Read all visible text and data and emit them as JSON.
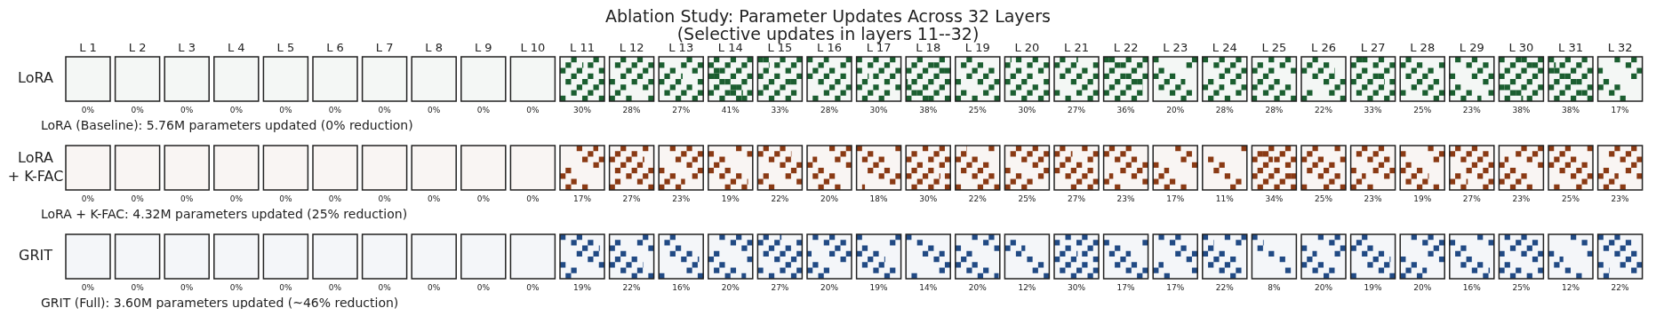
{
  "chart_data": {
    "type": "heatmap",
    "title": "Ablation Study: Parameter Updates Across 32 Layers",
    "subtitle": "(Selective updates in layers 11--32)",
    "categories": [
      "L 1",
      "L 2",
      "L 3",
      "L 4",
      "L 5",
      "L 6",
      "L 7",
      "L 8",
      "L 9",
      "L 10",
      "L 11",
      "L 12",
      "L 13",
      "L 14",
      "L 15",
      "L 16",
      "L 17",
      "L 18",
      "L 19",
      "L 20",
      "L 21",
      "L 22",
      "L 23",
      "L 24",
      "L 25",
      "L 26",
      "L 27",
      "L 28",
      "L 29",
      "L 30",
      "L 31",
      "L 32"
    ],
    "y_categories": [
      "LoRA",
      "LoRA\n+ K-FAC",
      "GRIT"
    ],
    "colors": [
      "#1b5e30",
      "#8a3a14",
      "#214a84"
    ],
    "cells": [
      [
        0,
        0,
        0,
        0,
        0,
        0,
        0,
        0,
        0,
        0,
        30,
        28,
        27,
        41,
        33,
        28,
        30,
        38,
        25,
        30,
        27,
        36,
        20,
        28,
        28,
        22,
        33,
        25,
        23,
        38,
        38,
        17
      ],
      [
        0,
        0,
        0,
        0,
        0,
        0,
        0,
        0,
        0,
        0,
        17,
        27,
        23,
        19,
        22,
        20,
        18,
        30,
        22,
        25,
        27,
        23,
        17,
        11,
        34,
        25,
        23,
        19,
        27,
        23,
        25,
        23
      ],
      [
        0,
        0,
        0,
        0,
        0,
        0,
        0,
        0,
        0,
        0,
        19,
        22,
        16,
        20,
        27,
        20,
        19,
        14,
        20,
        12,
        30,
        17,
        17,
        22,
        8,
        20,
        19,
        20,
        16,
        25,
        12,
        22
      ]
    ],
    "cell_labels": [
      [
        "0%",
        "0%",
        "0%",
        "0%",
        "0%",
        "0%",
        "0%",
        "0%",
        "0%",
        "0%",
        "30%",
        "28%",
        "27%",
        "41%",
        "33%",
        "28%",
        "30%",
        "38%",
        "25%",
        "30%",
        "27%",
        "36%",
        "20%",
        "28%",
        "28%",
        "22%",
        "33%",
        "25%",
        "23%",
        "38%",
        "38%",
        "17%"
      ],
      [
        "0%",
        "0%",
        "0%",
        "0%",
        "0%",
        "0%",
        "0%",
        "0%",
        "0%",
        "0%",
        "17%",
        "27%",
        "23%",
        "19%",
        "22%",
        "20%",
        "18%",
        "30%",
        "22%",
        "25%",
        "27%",
        "23%",
        "17%",
        "11%",
        "34%",
        "25%",
        "23%",
        "19%",
        "27%",
        "23%",
        "25%",
        "23%"
      ],
      [
        "0%",
        "0%",
        "0%",
        "0%",
        "0%",
        "0%",
        "0%",
        "0%",
        "0%",
        "0%",
        "19%",
        "22%",
        "16%",
        "20%",
        "27%",
        "20%",
        "19%",
        "14%",
        "20%",
        "12%",
        "30%",
        "17%",
        "17%",
        "22%",
        "8%",
        "20%",
        "19%",
        "20%",
        "16%",
        "25%",
        "12%",
        "22%"
      ]
    ],
    "annotations": [
      "LoRA (Baseline): 5.76M parameters updated (0% reduction)",
      "LoRA + K-FAC: 4.32M parameters updated (25% reduction)",
      "GRIT (Full): 3.60M parameters updated (~46% reduction)"
    ]
  }
}
